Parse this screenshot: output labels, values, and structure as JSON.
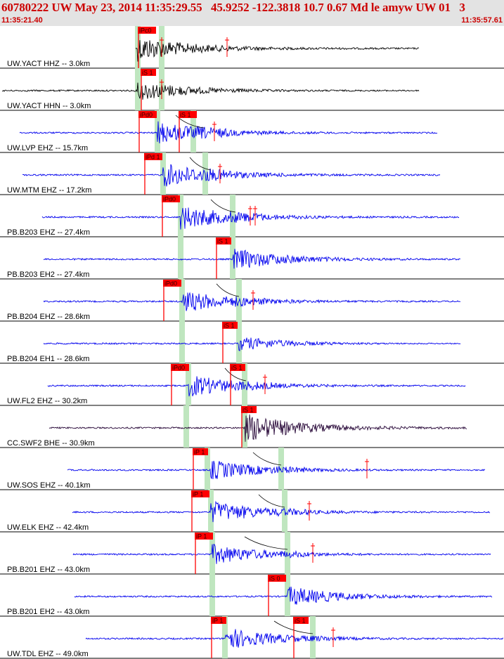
{
  "header": {
    "title": "60780222 UW May 23, 2014 11:35:29.55   45.9252 -122.3818 10.7 0.67 Md le amyw UW 01   3",
    "time_start": "11:35:21.40",
    "time_end": "11:35:57.61"
  },
  "colors": {
    "header_text": "#cc0000",
    "header_bg": "#e3e3e3",
    "pick_marker": "#ff0000",
    "pick_window": "#bfe6bf",
    "trace_blue": "#0000ee",
    "trace_black": "#000000",
    "trace_dark": "#2a0a3a",
    "separator": "#000000"
  },
  "traces": [
    {
      "label": "UW.YACT HHZ -- 3.0km",
      "color": "black",
      "start": 193,
      "end": 596,
      "onset": 196,
      "amp": 0.62,
      "picks": [
        {
          "label": "iPc0",
          "x": 196,
          "w": 26
        }
      ],
      "windows": [
        196,
        230
      ],
      "extra_ticks": [
        230,
        323
      ],
      "arc": null
    },
    {
      "label": "UW.YACT HHN -- 3.0km",
      "color": "black",
      "start": 3,
      "end": 596,
      "onset": 196,
      "amp": 0.5,
      "picks": [
        {
          "label": "iS 1",
          "x": 200,
          "w": 22
        }
      ],
      "windows": [
        196,
        230
      ],
      "extra_ticks": [
        230
      ],
      "arc": null
    },
    {
      "label": "UW.LVP EHZ -- 15.7km",
      "color": "blue",
      "start": 28,
      "end": 622,
      "onset": 224,
      "amp": 0.55,
      "picks": [
        {
          "label": "iPd0",
          "x": 197,
          "w": 26
        },
        {
          "label": "iS 1",
          "x": 254,
          "w": 26
        }
      ],
      "windows": [
        224,
        275
      ],
      "extra_ticks": [
        305
      ],
      "arc": [
        250,
        290
      ]
    },
    {
      "label": "UW.MTM EHZ -- 17.2km",
      "color": "blue",
      "start": 32,
      "end": 626,
      "onset": 232,
      "amp": 0.6,
      "picks": [
        {
          "label": "iPd 1",
          "x": 205,
          "w": 26
        }
      ],
      "windows": [
        232,
        292
      ],
      "extra_ticks": [
        313
      ],
      "arc": [
        270,
        300
      ]
    },
    {
      "label": "PB.B203 EHZ -- 27.4km",
      "color": "blue",
      "start": 60,
      "end": 653,
      "onset": 257,
      "amp": 0.6,
      "picks": [
        {
          "label": "iPd0",
          "x": 230,
          "w": 26
        }
      ],
      "windows": [
        257,
        331
      ],
      "extra_ticks": [
        356,
        363
      ],
      "arc": [
        300,
        335
      ]
    },
    {
      "label": "PB.B203 EH2 -- 27.4km",
      "color": "blue",
      "start": 62,
      "end": 655,
      "onset": 331,
      "amp": 0.55,
      "picks": [
        {
          "label": "iS 1",
          "x": 307,
          "w": 22
        }
      ],
      "windows": [
        257,
        331
      ],
      "extra_ticks": [],
      "arc": null
    },
    {
      "label": "PB.B204 EHZ -- 28.6km",
      "color": "blue",
      "start": 62,
      "end": 655,
      "onset": 259,
      "amp": 0.55,
      "picks": [
        {
          "label": "iPd0",
          "x": 232,
          "w": 26
        }
      ],
      "windows": [
        259,
        340
      ],
      "extra_ticks": [
        360
      ],
      "arc": [
        308,
        340
      ]
    },
    {
      "label": "PB.B204 EH1 -- 28.6km",
      "color": "blue",
      "start": 62,
      "end": 655,
      "onset": 340,
      "amp": 0.35,
      "picks": [
        {
          "label": "iS 1",
          "x": 316,
          "w": 22
        }
      ],
      "windows": [
        259,
        340
      ],
      "extra_ticks": [],
      "arc": null
    },
    {
      "label": "UW.FL2 EHZ -- 30.2km",
      "color": "blue",
      "start": 68,
      "end": 662,
      "onset": 268,
      "amp": 0.55,
      "picks": [
        {
          "label": "iPd0",
          "x": 243,
          "w": 26
        },
        {
          "label": "iS 1",
          "x": 327,
          "w": 22
        }
      ],
      "windows": [
        268,
        348
      ],
      "extra_ticks": [
        377
      ],
      "arc": [
        320,
        350
      ]
    },
    {
      "label": "CC.SWF2 BHE -- 30.9km",
      "color": "dark",
      "start": 70,
      "end": 664,
      "onset": 348,
      "amp": 0.7,
      "picks": [
        {
          "label": "iS 1",
          "x": 343,
          "w": 22
        }
      ],
      "windows": [
        265,
        348
      ],
      "extra_ticks": [],
      "arc": null
    },
    {
      "label": "UW.SOS EHZ -- 40.1km",
      "color": "blue",
      "start": 96,
      "end": 690,
      "onset": 300,
      "amp": 0.5,
      "picks": [
        {
          "label": "iP 1",
          "x": 274,
          "w": 22
        }
      ],
      "windows": [
        295,
        400
      ],
      "extra_ticks": [
        522
      ],
      "arc": [
        360,
        400
      ]
    },
    {
      "label": "UW.ELK EHZ -- 42.4km",
      "color": "blue",
      "start": 103,
      "end": 697,
      "onset": 300,
      "amp": 0.55,
      "picks": [
        {
          "label": "iP 1",
          "x": 272,
          "w": 26
        }
      ],
      "windows": [
        300,
        405
      ],
      "extra_ticks": [
        440
      ],
      "arc": [
        368,
        405
      ]
    },
    {
      "label": "PB.B201 EHZ -- 43.0km",
      "color": "blue",
      "start": 104,
      "end": 698,
      "onset": 302,
      "amp": 0.5,
      "picks": [
        {
          "label": "iP 1",
          "x": 277,
          "w": 26
        }
      ],
      "windows": [
        302,
        409
      ],
      "extra_ticks": [
        445
      ],
      "arc": [
        348,
        409
      ]
    },
    {
      "label": "PB.B201 EH2 -- 43.0km",
      "color": "blue",
      "start": 106,
      "end": 700,
      "onset": 409,
      "amp": 0.5,
      "picks": [
        {
          "label": "iS 0",
          "x": 381,
          "w": 26
        }
      ],
      "windows": [
        302,
        409
      ],
      "extra_ticks": [],
      "arc": null
    },
    {
      "label": "UW.TDL EHZ -- 49.0km",
      "color": "blue",
      "start": 122,
      "end": 716,
      "onset": 320,
      "amp": 0.55,
      "picks": [
        {
          "label": "iP 1",
          "x": 300,
          "w": 22
        },
        {
          "label": "iS 1",
          "x": 417,
          "w": 22
        }
      ],
      "windows": [
        320,
        445
      ],
      "extra_ticks": [
        474
      ],
      "arc": [
        390,
        445
      ]
    }
  ]
}
